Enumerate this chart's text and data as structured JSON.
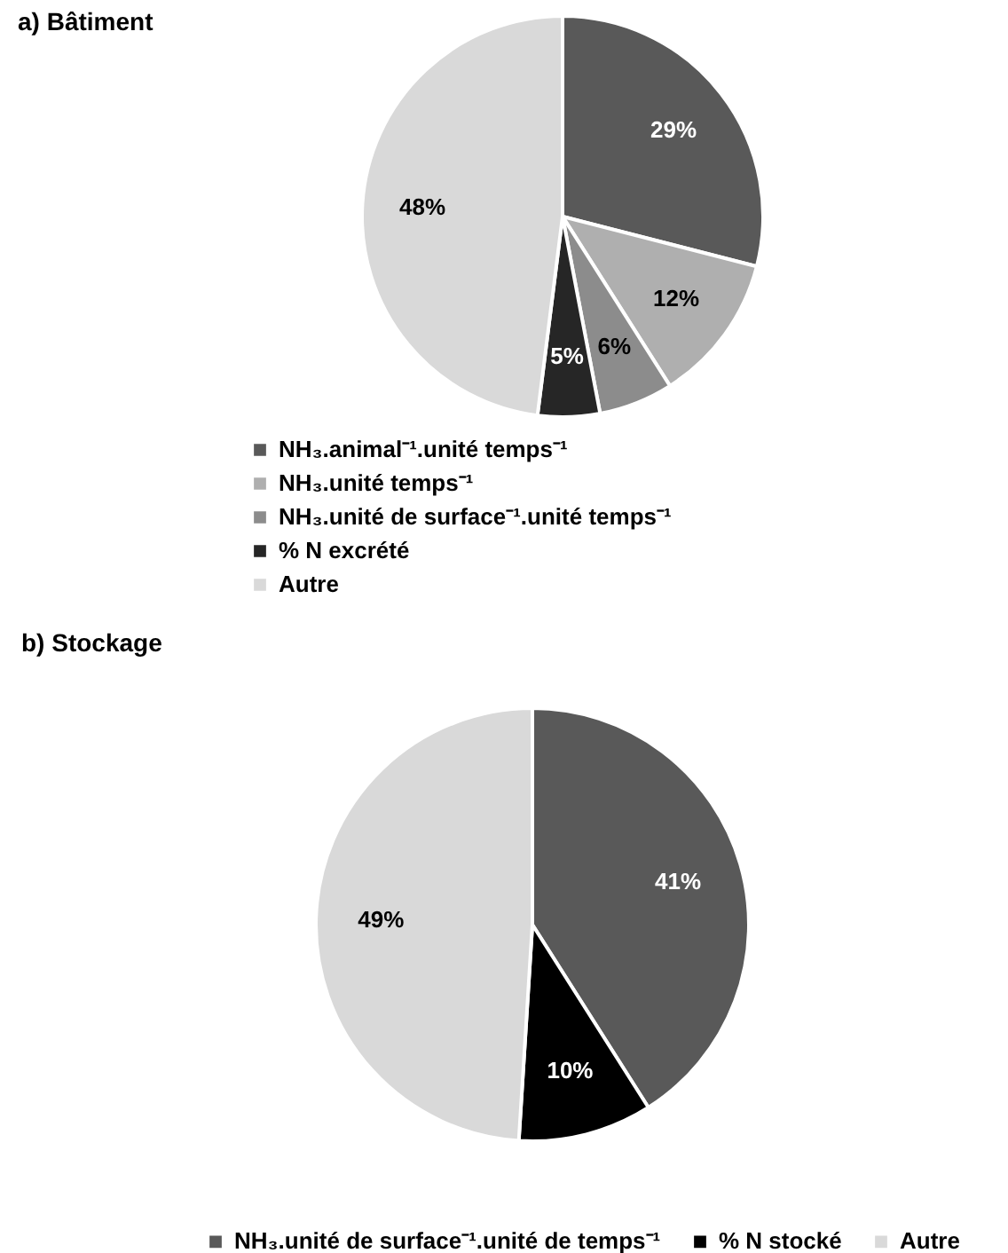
{
  "chart_data": [
    {
      "type": "pie",
      "title": "a) Bâtiment",
      "categories": [
        "NH₃.animal⁻¹.unité temps⁻¹",
        "NH₃.unité temps⁻¹",
        "NH₃.unité de surface⁻¹.unité temps⁻¹",
        "% N excrété",
        "Autre"
      ],
      "values": [
        29,
        12,
        6,
        5,
        48
      ],
      "colors": [
        "#595959",
        "#afafaf",
        "#8c8c8c",
        "#262626",
        "#d9d9d9"
      ],
      "value_labels": [
        "29%",
        "12%",
        "6%",
        "5%",
        "48%"
      ],
      "legend": "bottom"
    },
    {
      "type": "pie",
      "title": "b) Stockage",
      "categories": [
        "NH₃.unité de surface⁻¹.unité de temps⁻¹",
        "% N stocké",
        "Autre"
      ],
      "values": [
        41,
        10,
        49
      ],
      "colors": [
        "#595959",
        "#000000",
        "#d9d9d9"
      ],
      "value_labels": [
        "41%",
        "10%",
        "49%"
      ],
      "legend": "bottom"
    }
  ]
}
